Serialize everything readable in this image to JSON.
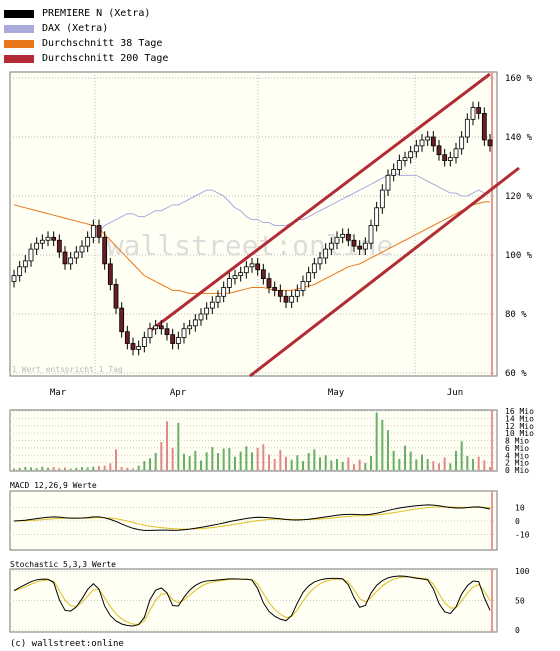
{
  "legend": [
    {
      "label": "PREMIERE N (Xetra)",
      "color": "#000000"
    },
    {
      "label": "DAX (Xetra)",
      "color": "#aaaadd"
    },
    {
      "label": "Durchschnitt 38 Tage",
      "color": "#e8771a"
    },
    {
      "label": "Durchschnitt 200 Tage",
      "color": "#b22b35"
    }
  ],
  "footer": "(c) wallstreet:online",
  "watermark": "wallstreet:online",
  "chart_data": [
    {
      "type": "candlestick",
      "note": "1 Wert entspricht 1 Tag",
      "x_labels": [
        "Mar",
        "Apr",
        "May",
        "Jun"
      ],
      "y_ticks": [
        "160 %",
        "140 %",
        "120 %",
        "100 %",
        "80 %",
        "60 %"
      ],
      "ylim": [
        60,
        160
      ],
      "series": {
        "price_open": [
          91,
          93,
          96,
          98,
          102,
          104,
          105,
          106,
          105,
          101,
          97,
          99,
          101,
          103,
          106,
          110,
          106,
          97,
          90,
          82,
          74,
          70,
          68,
          69,
          72,
          75,
          76,
          75,
          73,
          70,
          72,
          75,
          76,
          78,
          80,
          82,
          84,
          86,
          89,
          92,
          93,
          94,
          96,
          97,
          95,
          92,
          89,
          88,
          86,
          84,
          86,
          88,
          91,
          94,
          97,
          99,
          102,
          104,
          106,
          107,
          105,
          103,
          102,
          104,
          110,
          116,
          122,
          127,
          129,
          132,
          133,
          135,
          137,
          139,
          140,
          137,
          134,
          132,
          133,
          136,
          140,
          146,
          150,
          148,
          139
        ],
        "price_close": [
          93,
          96,
          98,
          102,
          104,
          105,
          106,
          105,
          101,
          97,
          99,
          101,
          103,
          106,
          110,
          106,
          97,
          90,
          82,
          74,
          70,
          68,
          69,
          72,
          75,
          76,
          75,
          73,
          70,
          72,
          75,
          76,
          78,
          80,
          82,
          84,
          86,
          89,
          92,
          93,
          94,
          96,
          97,
          95,
          92,
          89,
          88,
          86,
          84,
          86,
          88,
          91,
          94,
          97,
          99,
          102,
          104,
          106,
          107,
          105,
          103,
          102,
          104,
          110,
          116,
          122,
          127,
          129,
          132,
          133,
          135,
          137,
          139,
          140,
          137,
          134,
          132,
          133,
          136,
          140,
          146,
          150,
          148,
          139,
          137
        ],
        "dax": [
          null,
          null,
          null,
          null,
          null,
          null,
          null,
          null,
          null,
          null,
          null,
          null,
          null,
          null,
          null,
          108,
          110,
          111,
          112,
          113,
          114,
          114,
          113,
          113,
          114,
          115,
          115,
          116,
          117,
          117,
          118,
          119,
          120,
          121,
          122,
          122,
          121,
          120,
          118,
          116,
          115,
          113,
          112,
          112,
          111,
          111,
          110,
          110,
          110,
          111,
          112,
          112,
          113,
          114,
          115,
          116,
          117,
          118,
          119,
          120,
          121,
          122,
          123,
          124,
          125,
          126,
          127,
          128,
          127,
          127,
          127,
          127,
          126,
          125,
          124,
          123,
          122,
          121,
          121,
          120,
          120,
          121,
          122,
          121,
          121
        ],
        "ma38": [
          117,
          116.5,
          116,
          115.5,
          115,
          114.5,
          114,
          113.5,
          113,
          112.5,
          112,
          111.5,
          111,
          110.5,
          110,
          109,
          107,
          105,
          103,
          101,
          99,
          97,
          95,
          93,
          92,
          91,
          90,
          89,
          88,
          88,
          87.5,
          87,
          87,
          87,
          87,
          87,
          87,
          87,
          87,
          87.5,
          88,
          88.5,
          89,
          89,
          89,
          88.5,
          88,
          88,
          88,
          88,
          88.5,
          89,
          89.5,
          90,
          91,
          92,
          93,
          94,
          95,
          96,
          96.5,
          97,
          98,
          99,
          100,
          101,
          102,
          103,
          104,
          105,
          106,
          107,
          108,
          109,
          110,
          111,
          112,
          113,
          114,
          115,
          116,
          117,
          117.5,
          118,
          118
        ],
        "volume_mio": [
          0.4,
          0.6,
          0.8,
          0.7,
          0.5,
          0.9,
          0.6,
          0.8,
          0.5,
          0.7,
          0.4,
          0.6,
          0.8,
          0.7,
          0.9,
          1.0,
          1.2,
          1.8,
          5.6,
          0.8,
          0.6,
          0.4,
          1.2,
          2.4,
          3.2,
          4.6,
          7.6,
          13.2,
          6.0,
          12.8,
          4.4,
          3.8,
          5.2,
          2.6,
          4.8,
          6.2,
          4.6,
          5.8,
          6.0,
          3.6,
          5.0,
          6.4,
          4.8,
          6.0,
          7.0,
          4.2,
          3.0,
          5.4,
          3.6,
          2.8,
          4.0,
          2.4,
          4.6,
          5.6,
          3.4,
          4.0,
          2.6,
          3.0,
          2.2,
          3.4,
          1.6,
          2.8,
          1.9,
          3.8,
          15.6,
          13.6,
          10.8,
          5.2,
          3.0,
          6.6,
          5.0,
          2.9,
          4.2,
          3.0,
          2.4,
          1.8,
          3.4,
          1.8,
          5.2,
          7.8,
          3.8,
          3.0,
          3.6,
          2.6,
          0.8
        ],
        "macd_y_ticks": [
          "10",
          "0",
          "-10"
        ],
        "macd_label": "MACD 12,26,9 Werte",
        "stoch_label": "Stochastic 5,3,3 Werte",
        "stoch_y_ticks": [
          "100",
          "50",
          "0"
        ],
        "volume_y_ticks": [
          "16 Mio",
          "14 Mio",
          "12 Mio",
          "10 Mio",
          "8 Mio",
          "6 Mio",
          "4 Mio",
          "2 Mio",
          "0 Mio"
        ]
      }
    }
  ]
}
